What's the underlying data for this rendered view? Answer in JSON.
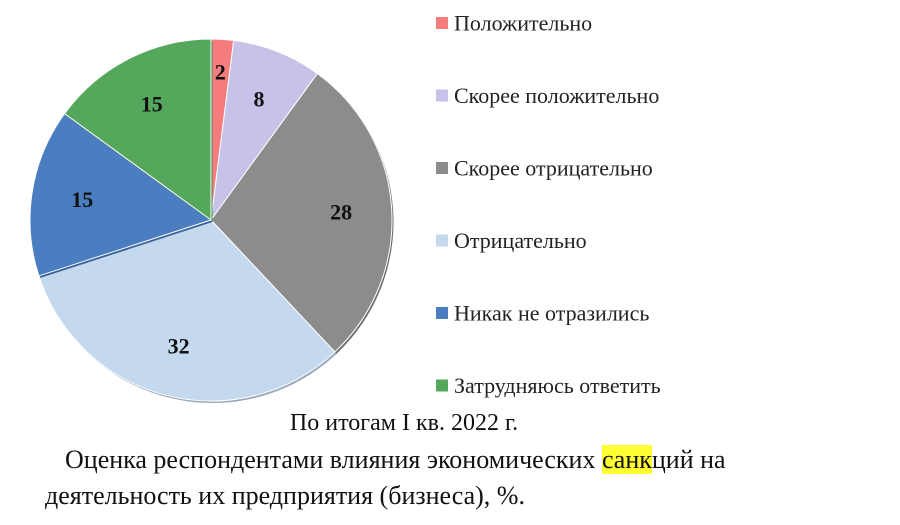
{
  "chart_data": {
    "type": "pie",
    "categories": [
      "Положительно",
      "Скорее положительно",
      "Скорее отрицательно",
      "Отрицательно",
      "Никак не отразились",
      "Затрудняюсь ответить"
    ],
    "values": [
      2,
      8,
      28,
      32,
      15,
      15
    ],
    "colors": [
      "#f47c7c",
      "#c6c2e8",
      "#8c8c8c",
      "#c4d8ee",
      "#4a7ec0",
      "#55a85b"
    ],
    "labels": [
      "2",
      "8",
      "28",
      "32",
      "15",
      "15"
    ],
    "legend_position": "right",
    "subtitle": "По итогам I кв. 2022 г."
  },
  "caption": {
    "line1_before": "Оценка респондентами влияния экономических ",
    "line1_highlight": "санк",
    "line1_after": "ций на",
    "line2": "деятельность их предприятия (бизнеса), %."
  }
}
